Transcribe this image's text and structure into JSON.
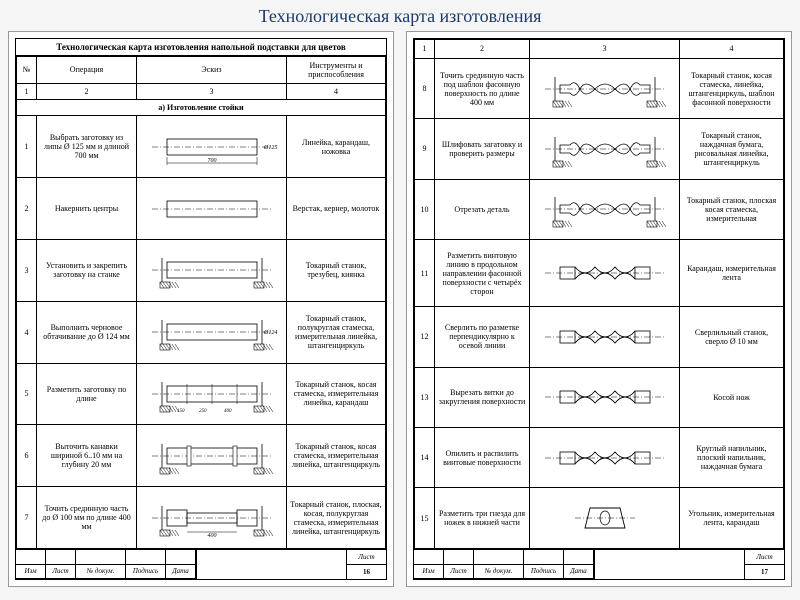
{
  "title": "Технологическая карта изготовления",
  "page1": {
    "sheet_title": "Технологическая карта изготовления напольной подставки для цветов",
    "headers": {
      "num": "№",
      "op": "Операция",
      "sk": "Эскиз",
      "tool": "Инструменты и приспособления",
      "ncol": "1",
      "ncol2": "2",
      "ncol3": "3",
      "ncol4": "4"
    },
    "section": "а) Изготовление стойки",
    "rows": [
      {
        "n": "1",
        "op": "Выбрать заготовку из липы Ø 125 мм и длиной 700 мм",
        "tool": "Линейка, карандаш, ножовка",
        "dim": "700",
        "dia": "Ø125",
        "type": "cyl_dim"
      },
      {
        "n": "2",
        "op": "Накернить центры",
        "tool": "Верстак, кернер, молоток",
        "type": "cyl"
      },
      {
        "n": "3",
        "op": "Установить и закрепить заготовку на станке",
        "tool": "Токарный станок, трезубец, киянка",
        "type": "lathe"
      },
      {
        "n": "4",
        "op": "Выполнить черновое обтачивание до Ø 124 мм",
        "tool": "Токарный станок, полукруглая стамеска, измерительная линейка, штангенциркуль",
        "type": "lathe",
        "dia": "Ø124"
      },
      {
        "n": "5",
        "op": "Разметить заготовку по длине",
        "tool": "Токарный станок, косая стамеска, измерительная линейка, карандаш",
        "type": "lathe_marks",
        "d1": "150",
        "d2": "250",
        "d3": "400"
      },
      {
        "n": "6",
        "op": "Выточить канавки шириной 6..10 мм на глубину 20 мм",
        "tool": "Токарный станок, косая стамеска, измерительная линейка, штангенциркуль",
        "type": "lathe_groove"
      },
      {
        "n": "7",
        "op": "Точить срединную часть до Ø 100 мм по длине 400 мм",
        "tool": "Токарный станок, плоская, косая, полукруглая стамеска, измерительная линейка, штангенциркуль",
        "type": "lathe_mid",
        "dim": "400"
      }
    ],
    "footer": {
      "labels": [
        "Изм",
        "Лист",
        "№ докум.",
        "Подпись",
        "Дата"
      ],
      "page_label": "Лист",
      "page_num": "16"
    }
  },
  "page2": {
    "headers": {
      "ncol": "1",
      "ncol2": "2",
      "ncol3": "3",
      "ncol4": "4"
    },
    "rows": [
      {
        "n": "8",
        "op": "Точить срединную часть под шаблон фасонную поверхность по длине 400 мм",
        "tool": "Токарный станок, косая стамеска, линейка, штангенциркуль, шаблон фасонной поверхности",
        "type": "baluster"
      },
      {
        "n": "9",
        "op": "Шлифовать загатовку и проверить размеры",
        "tool": "Токарный станок, наждачная бумага, рисовальная линейка, штангенциркуль",
        "type": "baluster"
      },
      {
        "n": "10",
        "op": "Отрезать деталь",
        "tool": "Токарный станок, плоская косая стамеска, измерительная",
        "type": "baluster_cut"
      },
      {
        "n": "11",
        "op": "Разметить винтовую линию в продольном направлении фасонной поверхности с четырёх сторон",
        "tool": "Карандаш, измерительная лента",
        "type": "twist"
      },
      {
        "n": "12",
        "op": "Сверлить по разметке перпендикулярно к осевой линии",
        "tool": "Сверлильный станок, сверло Ø 10 мм",
        "type": "twist_drill"
      },
      {
        "n": "13",
        "op": "Вырезать витки до закругления поверхности",
        "tool": "Косой нож",
        "type": "twist"
      },
      {
        "n": "14",
        "op": "Опилить и распилить винтовые поверхности",
        "tool": "Круглый напильник, плоский напильник, наждачная бумага",
        "type": "twist_smooth"
      },
      {
        "n": "15",
        "op": "Разметить три гнезда для ножек в нижней части",
        "tool": "Угольник, измерительная лента, карандаш",
        "type": "base"
      }
    ],
    "footer": {
      "labels": [
        "Изм",
        "Лист",
        "№ докум.",
        "Подпись",
        "Дата"
      ],
      "page_label": "Лист",
      "page_num": "17"
    }
  },
  "colors": {
    "stroke": "#000000",
    "fill": "#ffffff",
    "hatch": "#000000"
  }
}
